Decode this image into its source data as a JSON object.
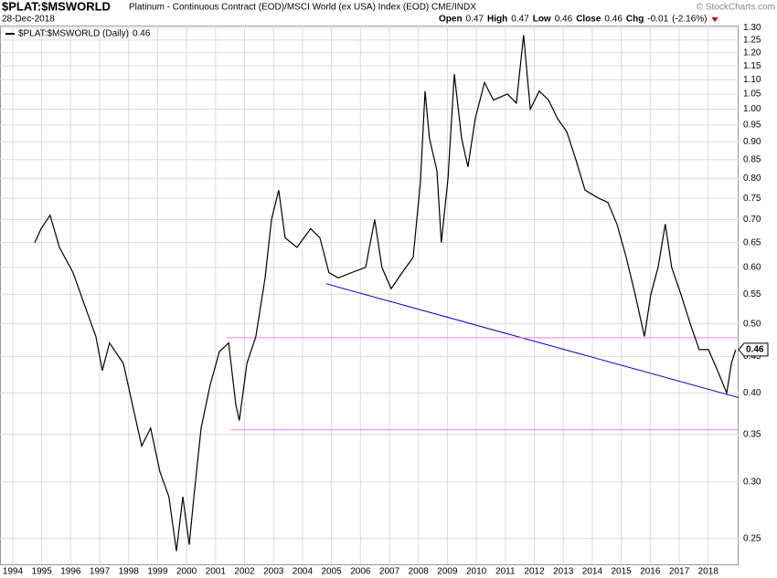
{
  "chart_data": {
    "type": "line",
    "title": "$PLAT:$MSWORLD",
    "subtitle": "Platinum - Continuous Contract (EOD)/MSCI World (ex USA) Index (EOD) CME/INDX",
    "source": "© StockCharts.com",
    "date": "28-Dec-2018",
    "quote": [
      {
        "label": "Open",
        "value": 0.47
      },
      {
        "label": "High",
        "value": 0.47
      },
      {
        "label": "Low",
        "value": 0.46
      },
      {
        "label": "Close",
        "value": 0.46
      },
      {
        "label": "Chg",
        "value": -0.01
      }
    ],
    "change_pct": {
      "value": -2.16,
      "label": "(-2.16%)"
    },
    "last_value": 0.46,
    "log_scale": true,
    "grid": true,
    "xlim": [
      1993.56,
      2019.05
    ],
    "xticks": [
      1994,
      1995,
      1996,
      1997,
      1998,
      1999,
      2000,
      2001,
      2002,
      2003,
      2004,
      2005,
      2006,
      2007,
      2008,
      2009,
      2010,
      2011,
      2012,
      2013,
      2014,
      2015,
      2016,
      2017,
      2018
    ],
    "ylim": [
      0.23,
      1.31
    ],
    "yticks": [
      0.25,
      {
        "value": 0.3,
        "label": "0.30"
      },
      0.35,
      {
        "value": 0.4,
        "label": "0.40"
      },
      0.45,
      {
        "value": 0.5,
        "label": "0.50"
      },
      0.55,
      {
        "value": 0.6,
        "label": "0.60"
      },
      0.65,
      {
        "value": 0.7,
        "label": "0.70"
      },
      0.75,
      {
        "value": 0.8,
        "label": "0.80"
      },
      0.85,
      {
        "value": 0.9,
        "label": "0.90"
      },
      0.95,
      {
        "value": 1,
        "label": "1.00"
      },
      1.05,
      {
        "value": 1.1,
        "label": "1.10"
      },
      1.15,
      {
        "value": 1.2,
        "label": "1.20"
      },
      1.25,
      {
        "value": 1.3,
        "label": "1.30"
      }
    ],
    "x": [
      1994.76,
      1994.98,
      1995.29,
      1995.61,
      1996.08,
      1996.56,
      1996.87,
      1997.09,
      1997.34,
      1997.82,
      1998.13,
      1998.45,
      1998.76,
      1999.08,
      1999.39,
      1999.65,
      1999.87,
      2000.09,
      2000.25,
      2000.5,
      2000.81,
      2001.13,
      2001.45,
      2001.7,
      2001.82,
      2002.08,
      2002.39,
      2002.71,
      2002.93,
      2003.18,
      2003.4,
      2003.81,
      2004.28,
      2004.6,
      2004.91,
      2005.23,
      2005.7,
      2006.18,
      2006.49,
      2006.74,
      2007.06,
      2007.44,
      2007.82,
      2008.07,
      2008.23,
      2008.38,
      2008.64,
      2008.79,
      2009.02,
      2009.24,
      2009.49,
      2009.71,
      2009.96,
      2010.28,
      2010.59,
      2011.07,
      2011.38,
      2011.63,
      2011.86,
      2012.17,
      2012.49,
      2012.8,
      2013.12,
      2013.43,
      2013.75,
      2014.22,
      2014.54,
      2014.85,
      2015.17,
      2015.48,
      2015.8,
      2016.02,
      2016.27,
      2016.52,
      2016.74,
      2017.06,
      2017.38,
      2017.69,
      2018.01,
      2018.32,
      2018.64,
      2018.8,
      2018.95
    ],
    "series": [
      {
        "name": "$PLAT:$MSWORLD (Daily)",
        "color": "#000000",
        "values": [
          0.65,
          0.68,
          0.71,
          0.64,
          0.59,
          0.52,
          0.48,
          0.43,
          0.47,
          0.44,
          0.385,
          0.337,
          0.357,
          0.31,
          0.286,
          0.24,
          0.286,
          0.245,
          0.286,
          0.357,
          0.41,
          0.457,
          0.47,
          0.385,
          0.366,
          0.44,
          0.48,
          0.58,
          0.7,
          0.77,
          0.66,
          0.64,
          0.68,
          0.66,
          0.59,
          0.58,
          0.59,
          0.6,
          0.7,
          0.6,
          0.56,
          0.59,
          0.62,
          0.79,
          1.06,
          0.91,
          0.82,
          0.65,
          0.8,
          1.12,
          0.91,
          0.83,
          0.97,
          1.09,
          1.03,
          1.05,
          1.02,
          1.27,
          1,
          1.06,
          1.03,
          0.97,
          0.93,
          0.85,
          0.77,
          0.75,
          0.74,
          0.69,
          0.62,
          0.55,
          0.48,
          0.55,
          0.6,
          0.69,
          0.6,
          0.55,
          0.5,
          0.46,
          0.46,
          0.43,
          0.4,
          0.44,
          0.46
        ]
      }
    ],
    "lines": [
      {
        "color": "#0000cc",
        "x": [
          2004.82,
          2019.05
        ],
        "values": [
          0.569,
          0.394
        ]
      },
      {
        "color": "#ee82ee",
        "x": [
          2001.38,
          2019.05
        ],
        "values": [
          0.478,
          0.478
        ]
      },
      {
        "color": "#ee82ee",
        "x": [
          2001.51,
          2019.05
        ],
        "values": [
          0.355,
          0.355
        ]
      }
    ]
  }
}
